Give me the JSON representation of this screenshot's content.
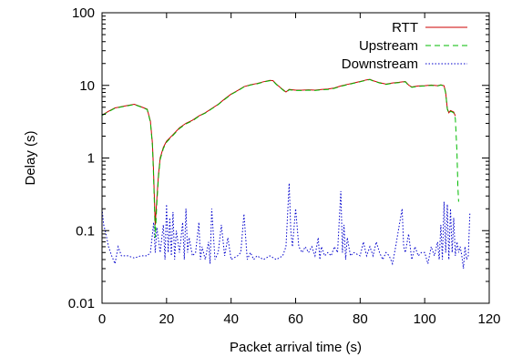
{
  "chart_data": {
    "type": "line",
    "xlabel": "Packet arrival time (s)",
    "ylabel": "Delay (s)",
    "xlim": [
      0,
      120
    ],
    "ylim": [
      0.01,
      100
    ],
    "y_scale": "log",
    "grid": false,
    "legend_position": "top-right",
    "x_ticks": [
      {
        "value": 0,
        "label": "0"
      },
      {
        "value": 20,
        "label": "20"
      },
      {
        "value": 40,
        "label": "40"
      },
      {
        "value": 60,
        "label": "60"
      },
      {
        "value": 80,
        "label": "80"
      },
      {
        "value": 100,
        "label": "100"
      },
      {
        "value": 120,
        "label": "120"
      }
    ],
    "y_ticks": [
      {
        "value": 0.01,
        "label": "0.01"
      },
      {
        "value": 0.1,
        "label": "0.1"
      },
      {
        "value": 1,
        "label": "1"
      },
      {
        "value": 10,
        "label": "10"
      },
      {
        "value": 100,
        "label": "100"
      }
    ],
    "series": [
      {
        "name": "RTT",
        "color": "#cc0000",
        "dash": "solid",
        "points": [
          [
            0,
            3.9
          ],
          [
            2,
            4.4
          ],
          [
            4,
            4.9
          ],
          [
            6,
            5.1
          ],
          [
            8,
            5.3
          ],
          [
            10,
            5.5
          ],
          [
            12,
            5.1
          ],
          [
            14,
            4.7
          ],
          [
            15,
            3.2
          ],
          [
            15.6,
            1.6
          ],
          [
            15.9,
            0.8
          ],
          [
            16.2,
            0.3
          ],
          [
            16.5,
            0.12
          ],
          [
            17,
            0.28
          ],
          [
            17.5,
            0.6
          ],
          [
            18,
            1.0
          ],
          [
            19,
            1.4
          ],
          [
            20,
            1.7
          ],
          [
            22,
            2.1
          ],
          [
            24,
            2.6
          ],
          [
            26,
            3.0
          ],
          [
            28,
            3.3
          ],
          [
            30,
            3.8
          ],
          [
            32,
            4.2
          ],
          [
            34,
            4.8
          ],
          [
            36,
            5.5
          ],
          [
            38,
            6.5
          ],
          [
            40,
            7.6
          ],
          [
            42,
            8.5
          ],
          [
            44,
            9.6
          ],
          [
            46,
            10.2
          ],
          [
            48,
            10.6
          ],
          [
            50,
            11.2
          ],
          [
            52,
            11.7
          ],
          [
            53,
            11.6
          ],
          [
            54,
            10.4
          ],
          [
            56,
            8.8
          ],
          [
            57,
            8.1
          ],
          [
            58,
            8.8
          ],
          [
            60,
            8.6
          ],
          [
            62,
            8.6
          ],
          [
            64,
            8.7
          ],
          [
            66,
            8.6
          ],
          [
            68,
            8.8
          ],
          [
            70,
            8.9
          ],
          [
            72,
            9.2
          ],
          [
            74,
            9.8
          ],
          [
            76,
            10.3
          ],
          [
            78,
            10.8
          ],
          [
            80,
            11.3
          ],
          [
            82,
            11.9
          ],
          [
            83,
            12.1
          ],
          [
            84,
            11.6
          ],
          [
            86,
            10.9
          ],
          [
            88,
            10.4
          ],
          [
            90,
            10.8
          ],
          [
            92,
            11.0
          ],
          [
            94,
            11.3
          ],
          [
            95,
            10.1
          ],
          [
            96,
            9.5
          ],
          [
            98,
            9.8
          ],
          [
            100,
            9.9
          ],
          [
            102,
            10.1
          ],
          [
            104,
            9.9
          ],
          [
            105,
            10.2
          ],
          [
            106,
            9.9
          ],
          [
            106.5,
            8.0
          ],
          [
            107,
            4.8
          ],
          [
            107.5,
            4.2
          ],
          [
            108,
            4.5
          ],
          [
            109,
            4.3
          ],
          [
            109.5,
            3.8
          ]
        ]
      },
      {
        "name": "Upstream",
        "color": "#00bb00",
        "dash": "dashed",
        "points": [
          [
            0,
            3.85
          ],
          [
            2,
            4.35
          ],
          [
            4,
            4.85
          ],
          [
            6,
            5.05
          ],
          [
            8,
            5.25
          ],
          [
            10,
            5.45
          ],
          [
            12,
            5.05
          ],
          [
            14,
            4.65
          ],
          [
            15,
            3.1
          ],
          [
            15.6,
            1.5
          ],
          [
            15.9,
            0.7
          ],
          [
            16.2,
            0.25
          ],
          [
            16.5,
            0.08
          ],
          [
            17,
            0.24
          ],
          [
            17.5,
            0.55
          ],
          [
            18,
            0.95
          ],
          [
            19,
            1.35
          ],
          [
            20,
            1.65
          ],
          [
            22,
            2.05
          ],
          [
            24,
            2.55
          ],
          [
            26,
            2.95
          ],
          [
            28,
            3.25
          ],
          [
            30,
            3.75
          ],
          [
            32,
            4.15
          ],
          [
            34,
            4.75
          ],
          [
            36,
            5.45
          ],
          [
            38,
            6.4
          ],
          [
            40,
            7.5
          ],
          [
            42,
            8.4
          ],
          [
            44,
            9.5
          ],
          [
            46,
            10.1
          ],
          [
            48,
            10.5
          ],
          [
            50,
            11.1
          ],
          [
            52,
            11.6
          ],
          [
            53,
            11.5
          ],
          [
            54,
            10.3
          ],
          [
            56,
            8.7
          ],
          [
            57,
            8.0
          ],
          [
            58,
            8.7
          ],
          [
            60,
            8.5
          ],
          [
            62,
            8.5
          ],
          [
            64,
            8.6
          ],
          [
            66,
            8.5
          ],
          [
            68,
            8.7
          ],
          [
            70,
            8.8
          ],
          [
            72,
            9.1
          ],
          [
            74,
            9.7
          ],
          [
            76,
            10.2
          ],
          [
            78,
            10.7
          ],
          [
            80,
            11.2
          ],
          [
            82,
            11.8
          ],
          [
            83,
            12.0
          ],
          [
            84,
            11.5
          ],
          [
            86,
            10.8
          ],
          [
            88,
            10.3
          ],
          [
            90,
            10.7
          ],
          [
            92,
            10.9
          ],
          [
            94,
            11.2
          ],
          [
            95,
            10.0
          ],
          [
            96,
            9.4
          ],
          [
            98,
            9.7
          ],
          [
            100,
            9.8
          ],
          [
            102,
            10.0
          ],
          [
            104,
            9.8
          ],
          [
            105,
            10.1
          ],
          [
            106,
            9.8
          ],
          [
            106.5,
            7.8
          ],
          [
            107,
            4.7
          ],
          [
            107.5,
            4.1
          ],
          [
            108,
            4.4
          ],
          [
            109,
            4.2
          ],
          [
            109.5,
            3.5
          ],
          [
            110,
            1.2
          ],
          [
            110.3,
            0.4
          ],
          [
            110.5,
            0.25
          ]
        ]
      },
      {
        "name": "Downstream",
        "color": "#0000cc",
        "dash": "dotted",
        "points": [
          [
            0,
            0.2
          ],
          [
            0.5,
            0.12
          ],
          [
            1,
            0.1
          ],
          [
            2,
            0.06
          ],
          [
            3,
            0.045
          ],
          [
            4,
            0.035
          ],
          [
            5,
            0.06
          ],
          [
            6,
            0.045
          ],
          [
            7,
            0.045
          ],
          [
            8,
            0.045
          ],
          [
            10,
            0.042
          ],
          [
            12,
            0.045
          ],
          [
            14,
            0.045
          ],
          [
            15,
            0.05
          ],
          [
            16,
            0.13
          ],
          [
            16.5,
            0.05
          ],
          [
            17,
            0.11
          ],
          [
            18,
            0.05
          ],
          [
            19,
            0.12
          ],
          [
            19.5,
            0.04
          ],
          [
            20,
            0.23
          ],
          [
            20.5,
            0.05
          ],
          [
            21,
            0.15
          ],
          [
            21.5,
            0.045
          ],
          [
            22,
            0.18
          ],
          [
            22.5,
            0.04
          ],
          [
            23,
            0.1
          ],
          [
            24,
            0.05
          ],
          [
            25,
            0.13
          ],
          [
            25.5,
            0.04
          ],
          [
            26,
            0.2
          ],
          [
            26.5,
            0.05
          ],
          [
            27,
            0.08
          ],
          [
            28,
            0.045
          ],
          [
            29,
            0.05
          ],
          [
            30,
            0.13
          ],
          [
            30.5,
            0.04
          ],
          [
            31,
            0.06
          ],
          [
            32,
            0.04
          ],
          [
            33,
            0.07
          ],
          [
            33.5,
            0.035
          ],
          [
            34,
            0.2
          ],
          [
            35,
            0.04
          ],
          [
            36,
            0.05
          ],
          [
            37,
            0.12
          ],
          [
            38,
            0.045
          ],
          [
            39,
            0.08
          ],
          [
            40,
            0.04
          ],
          [
            42,
            0.045
          ],
          [
            43,
            0.05
          ],
          [
            44,
            0.17
          ],
          [
            45,
            0.04
          ],
          [
            46,
            0.05
          ],
          [
            47,
            0.04
          ],
          [
            48,
            0.045
          ],
          [
            50,
            0.04
          ],
          [
            52,
            0.045
          ],
          [
            54,
            0.04
          ],
          [
            56,
            0.045
          ],
          [
            57,
            0.06
          ],
          [
            58,
            0.45
          ],
          [
            58.5,
            0.1
          ],
          [
            59,
            0.06
          ],
          [
            60,
            0.2
          ],
          [
            61,
            0.06
          ],
          [
            62,
            0.05
          ],
          [
            63,
            0.06
          ],
          [
            64,
            0.05
          ],
          [
            65,
            0.06
          ],
          [
            66,
            0.045
          ],
          [
            67,
            0.08
          ],
          [
            67.5,
            0.04
          ],
          [
            68,
            0.06
          ],
          [
            69,
            0.045
          ],
          [
            70,
            0.05
          ],
          [
            71,
            0.045
          ],
          [
            72,
            0.06
          ],
          [
            73,
            0.05
          ],
          [
            74,
            0.35
          ],
          [
            74.5,
            0.05
          ],
          [
            75,
            0.12
          ],
          [
            75.5,
            0.04
          ],
          [
            76,
            0.08
          ],
          [
            77,
            0.045
          ],
          [
            78,
            0.05
          ],
          [
            80,
            0.045
          ],
          [
            81,
            0.07
          ],
          [
            82,
            0.045
          ],
          [
            83,
            0.06
          ],
          [
            84,
            0.045
          ],
          [
            85,
            0.07
          ],
          [
            86,
            0.05
          ],
          [
            87,
            0.04
          ],
          [
            88,
            0.05
          ],
          [
            89,
            0.045
          ],
          [
            90,
            0.035
          ],
          [
            91,
            0.06
          ],
          [
            92,
            0.11
          ],
          [
            93,
            0.2
          ],
          [
            93.5,
            0.06
          ],
          [
            94,
            0.05
          ],
          [
            95,
            0.09
          ],
          [
            96,
            0.04
          ],
          [
            97,
            0.06
          ],
          [
            98,
            0.045
          ],
          [
            99,
            0.05
          ],
          [
            100,
            0.05
          ],
          [
            101,
            0.035
          ],
          [
            102,
            0.06
          ],
          [
            103,
            0.045
          ],
          [
            104,
            0.07
          ],
          [
            104.5,
            0.04
          ],
          [
            105,
            0.12
          ],
          [
            105.5,
            0.04
          ],
          [
            106,
            0.25
          ],
          [
            106.5,
            0.05
          ],
          [
            107,
            0.23
          ],
          [
            107.5,
            0.04
          ],
          [
            108,
            0.2
          ],
          [
            108.5,
            0.05
          ],
          [
            109,
            0.15
          ],
          [
            109.5,
            0.045
          ],
          [
            110,
            0.07
          ],
          [
            110.5,
            0.05
          ],
          [
            111,
            0.06
          ],
          [
            111.5,
            0.045
          ],
          [
            112,
            0.03
          ],
          [
            112.5,
            0.06
          ],
          [
            113,
            0.04
          ],
          [
            113.5,
            0.045
          ],
          [
            114,
            0.18
          ]
        ]
      }
    ]
  }
}
